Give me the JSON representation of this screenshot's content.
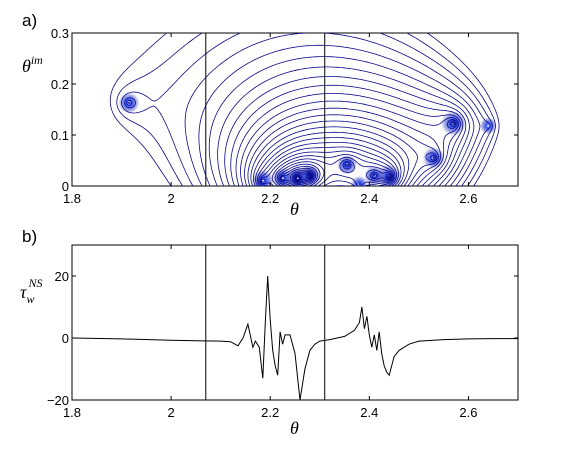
{
  "chart_data": [
    {
      "panel": "a)",
      "type": "contour",
      "xlabel": "θ",
      "ylabel": {
        "base": "θ",
        "sup": "im"
      },
      "xlim": [
        1.8,
        2.7
      ],
      "ylim": [
        0,
        0.3
      ],
      "xticks": [
        1.8,
        2,
        2.2,
        2.4,
        2.6
      ],
      "xtick_labels": [
        "1.8",
        "2",
        "2.2",
        "2.4",
        "2.6"
      ],
      "yticks": [
        0,
        0.1,
        0.2,
        0.3
      ],
      "ytick_labels": [
        "0",
        "0.1",
        "0.2",
        "0.3"
      ],
      "vlines": [
        2.07,
        2.31
      ],
      "line_color": "#0a0a8c",
      "center_color": "#3355ff",
      "poles": [
        {
          "x": 1.915,
          "y": 0.163,
          "size": 0.9
        },
        {
          "x": 2.185,
          "y": 0.01,
          "size": 1.0
        },
        {
          "x": 2.225,
          "y": 0.015,
          "size": 0.9
        },
        {
          "x": 2.255,
          "y": 0.015,
          "size": 1.2
        },
        {
          "x": 2.28,
          "y": 0.02,
          "size": 1.1
        },
        {
          "x": 2.355,
          "y": 0.042,
          "size": 0.8
        },
        {
          "x": 2.38,
          "y": 0.003,
          "size": 0.5
        },
        {
          "x": 2.41,
          "y": 0.02,
          "size": 0.8
        },
        {
          "x": 2.44,
          "y": 0.018,
          "size": 1.3
        },
        {
          "x": 2.53,
          "y": 0.055,
          "size": 1.0
        },
        {
          "x": 2.57,
          "y": 0.123,
          "size": 1.3
        },
        {
          "x": 2.64,
          "y": 0.118,
          "size": 0.5
        }
      ]
    },
    {
      "panel": "b)",
      "type": "line",
      "xlabel": "θ",
      "ylabel": {
        "base": "τ",
        "sub": "w",
        "sup": "NS"
      },
      "xlim": [
        1.8,
        2.7
      ],
      "ylim": [
        -20,
        30
      ],
      "xticks": [
        1.8,
        2,
        2.2,
        2.4,
        2.6
      ],
      "xtick_labels": [
        "1.8",
        "2",
        "2.2",
        "2.4",
        "2.6"
      ],
      "yticks": [
        -20,
        0,
        20
      ],
      "ytick_labels": [
        "−20",
        "0",
        "20"
      ],
      "vlines": [
        2.07,
        2.31
      ],
      "line_color": "#000000",
      "series": [
        {
          "x": [
            1.8,
            1.9,
            2.0,
            2.05,
            2.1,
            2.12,
            2.135,
            2.145,
            2.155,
            2.165,
            2.17,
            2.178,
            2.185,
            2.19,
            2.195,
            2.2,
            2.205,
            2.21,
            2.215,
            2.22,
            2.225,
            2.23,
            2.24,
            2.25,
            2.26,
            2.27,
            2.28,
            2.29,
            2.3,
            2.32,
            2.35,
            2.37,
            2.38,
            2.385,
            2.39,
            2.395,
            2.4,
            2.405,
            2.41,
            2.415,
            2.42,
            2.425,
            2.43,
            2.435,
            2.44,
            2.45,
            2.46,
            2.48,
            2.5,
            2.55,
            2.6,
            2.65,
            2.7
          ],
          "y": [
            0,
            -0.3,
            -0.7,
            -0.9,
            -1,
            -1.2,
            -2.5,
            0,
            4.5,
            -3,
            -1,
            -3,
            -13,
            5,
            20,
            6,
            -4,
            -9,
            -12,
            2,
            -2,
            1,
            1,
            -5,
            -20,
            -10,
            -4,
            -2,
            -1,
            -0.5,
            0.5,
            2.5,
            5,
            10,
            3,
            7,
            1,
            -3,
            1,
            -4,
            2,
            -5,
            -9,
            -11,
            -12,
            -6,
            -4,
            -2,
            -1,
            -0.5,
            -0.3,
            -0.2,
            -0.2
          ]
        }
      ]
    }
  ]
}
